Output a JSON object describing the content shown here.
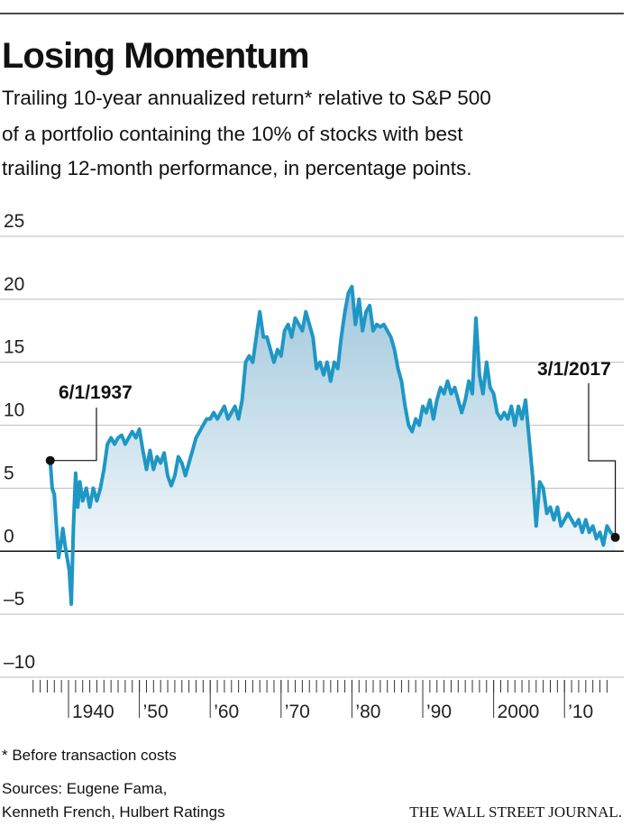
{
  "chart_data": {
    "type": "line",
    "title": "Losing Momentum",
    "subtitle": [
      "Trailing 10-year annualized return* relative to S&P 500",
      "of a portfolio containing the 10% of stocks with best",
      "trailing 12-month performance, in percentage points."
    ],
    "annotations": [
      "6/1/1937",
      "3/1/2017"
    ],
    "footnote": "* Before transaction costs",
    "source": [
      "Sources: Eugene Fama,",
      "Kenneth French, Hulbert Ratings"
    ],
    "credit": "THE WALL STREET JOURNAL.",
    "color": "#1f97c4",
    "grid": true,
    "ylim": [
      -10,
      25
    ],
    "yticks": [
      {
        "value": -10,
        "label": "–10"
      },
      {
        "value": -5,
        "label": "–5"
      },
      0,
      5,
      10,
      15,
      20,
      25
    ],
    "xlim": [
      1935,
      2018
    ],
    "xticks": [
      1940,
      {
        "value": 1950,
        "label": "’50"
      },
      {
        "value": 1960,
        "label": "’60"
      },
      {
        "value": 1970,
        "label": "’70"
      },
      {
        "value": 1980,
        "label": "’80"
      },
      {
        "value": 1990,
        "label": "’90"
      },
      2000,
      {
        "value": 2010,
        "label": "’10"
      }
    ],
    "x": [
      1937.42,
      1937.7,
      1938.0,
      1938.3,
      1938.6,
      1938.9,
      1939.2,
      1939.5,
      1939.8,
      1940.1,
      1940.4,
      1940.7,
      1941.0,
      1941.3,
      1941.6,
      1942.0,
      1942.5,
      1943.0,
      1943.5,
      1944.0,
      1944.5,
      1945.0,
      1945.5,
      1946.0,
      1946.5,
      1947.0,
      1947.5,
      1948.0,
      1948.5,
      1949.0,
      1949.5,
      1950.0,
      1950.5,
      1951.0,
      1951.5,
      1952.0,
      1952.5,
      1953.0,
      1953.5,
      1954.0,
      1954.5,
      1955.0,
      1955.5,
      1956.0,
      1956.5,
      1957.0,
      1957.5,
      1958.0,
      1958.5,
      1959.0,
      1959.5,
      1960.0,
      1960.5,
      1961.0,
      1961.5,
      1962.0,
      1962.5,
      1963.0,
      1963.5,
      1964.0,
      1964.5,
      1965.0,
      1965.5,
      1966.0,
      1966.5,
      1967.0,
      1967.5,
      1968.0,
      1968.5,
      1969.0,
      1969.5,
      1970.0,
      1970.5,
      1971.0,
      1971.5,
      1972.0,
      1972.5,
      1973.0,
      1973.5,
      1974.0,
      1974.5,
      1975.0,
      1975.5,
      1976.0,
      1976.5,
      1977.0,
      1977.5,
      1978.0,
      1978.5,
      1979.0,
      1979.5,
      1980.0,
      1980.5,
      1981.0,
      1981.5,
      1982.0,
      1982.5,
      1983.0,
      1983.5,
      1984.0,
      1984.5,
      1985.0,
      1985.5,
      1986.0,
      1986.5,
      1987.0,
      1987.5,
      1988.0,
      1988.5,
      1989.0,
      1989.5,
      1990.0,
      1990.5,
      1991.0,
      1991.5,
      1992.0,
      1992.5,
      1993.0,
      1993.5,
      1994.0,
      1994.5,
      1995.0,
      1995.5,
      1996.0,
      1996.5,
      1997.0,
      1997.5,
      1998.0,
      1998.5,
      1999.0,
      1999.5,
      2000.0,
      2000.5,
      2001.0,
      2001.5,
      2002.0,
      2002.5,
      2003.0,
      2003.5,
      2004.0,
      2004.5,
      2005.0,
      2005.5,
      2006.0,
      2006.5,
      2007.0,
      2007.5,
      2008.0,
      2008.5,
      2009.0,
      2009.5,
      2010.0,
      2010.5,
      2011.0,
      2011.5,
      2012.0,
      2012.5,
      2013.0,
      2013.5,
      2014.0,
      2014.5,
      2015.0,
      2015.5,
      2016.0,
      2016.5,
      2017.17
    ],
    "values": [
      7.2,
      5,
      4.5,
      2,
      -0.5,
      0.5,
      1.8,
      0.5,
      -0.5,
      -1.5,
      -4.2,
      2,
      6.2,
      3.5,
      5.5,
      4,
      5,
      3.5,
      5,
      4,
      5,
      6.5,
      8.5,
      9,
      8.5,
      9,
      9.2,
      8.5,
      9,
      9.5,
      9,
      9.7,
      8,
      6.5,
      8,
      6.5,
      7.5,
      7,
      7.8,
      6,
      5.2,
      6,
      7.5,
      7,
      6,
      7,
      8,
      9,
      9.5,
      10,
      10.5,
      10.5,
      11,
      10.5,
      11,
      11.5,
      10.5,
      11,
      11.5,
      10.5,
      12,
      15,
      15.5,
      15,
      17,
      19,
      17,
      17,
      16,
      15,
      16,
      15.5,
      17.5,
      18,
      17,
      18.5,
      18,
      17.5,
      19,
      18,
      17,
      14.5,
      15,
      14,
      15,
      13.5,
      15,
      14.5,
      17,
      19,
      20.5,
      21,
      18,
      20,
      17.5,
      19,
      19.5,
      17.5,
      18,
      17.8,
      18,
      17.5,
      17,
      16,
      14.5,
      13.5,
      11.5,
      10,
      9.5,
      10.5,
      10,
      11.5,
      11,
      12,
      10.5,
      12,
      13,
      12.5,
      13.5,
      12.5,
      13,
      12,
      11,
      12,
      13.5,
      12.5,
      18.5,
      14,
      12.5,
      15,
      13,
      12.5,
      11,
      10.5,
      11,
      10.5,
      11.5,
      10,
      11.5,
      10.5,
      12,
      9,
      6,
      2,
      5.5,
      5,
      3,
      3.5,
      2.5,
      3.5,
      2,
      2.5,
      3,
      2.5,
      2,
      2.5,
      1.5,
      2.5,
      1.5,
      2,
      1,
      1.5,
      0.5,
      2,
      1.5,
      1.1
    ]
  }
}
